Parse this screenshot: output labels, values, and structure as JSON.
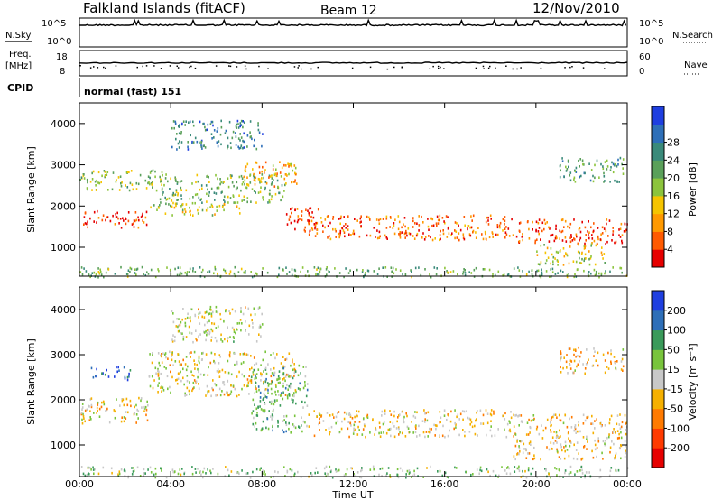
{
  "header": {
    "station": "Falkland Islands (fitACF)",
    "beam": "Beam 12",
    "date": "12/Nov/2010"
  },
  "noise_panel": {
    "left_label": "N.Sky",
    "right_label": "N.Search",
    "left_ticks": [
      "10^5",
      "10^0"
    ],
    "right_ticks": [
      "10^5",
      "10^0"
    ]
  },
  "freq_panel": {
    "left_label_1": "Freq.",
    "left_label_2": "[MHz]",
    "right_label": "Nave",
    "left_ticks": [
      "18",
      "8"
    ],
    "right_ticks": [
      "60",
      "0"
    ]
  },
  "cpid": {
    "label": "CPID",
    "value": "normal (fast) 151"
  },
  "colors": {
    "power": [
      "#1f3fe0",
      "#2e6fb8",
      "#3a8a7a",
      "#5aa05a",
      "#8cc43c",
      "#f5c400",
      "#ff9900",
      "#ff5a00",
      "#e60000"
    ],
    "velocity": [
      "#1f3fe0",
      "#2e6fb8",
      "#3a9a5a",
      "#78c43c",
      "#c8c8c8",
      "#f5b000",
      "#ff7a00",
      "#ff3a00",
      "#e60000"
    ]
  },
  "chart_data": [
    {
      "type": "heatmap",
      "name": "power",
      "ylabel": "Slant Range [km]",
      "xlabel": "",
      "x_ticks": [
        "00:00",
        "04:00",
        "08:00",
        "12:00",
        "16:00",
        "20:00",
        "00:00"
      ],
      "y_ticks": [
        "1000",
        "2000",
        "3000",
        "4000"
      ],
      "ylim": [
        300,
        4500
      ],
      "xlim_hours": [
        0,
        24
      ],
      "colorbar_label": "Power [dB]",
      "colorbar_ticks": [
        "4",
        "8",
        "12",
        "16",
        "20",
        "24",
        "28"
      ],
      "scatter_bands": [
        {
          "t0": 0.0,
          "t1": 3.0,
          "r0": 1500,
          "r1": 1900,
          "level": 0.92
        },
        {
          "t0": 0.0,
          "t1": 3.8,
          "r0": 2400,
          "r1": 2900,
          "level": 0.5
        },
        {
          "t0": 3.0,
          "t1": 7.0,
          "r0": 1800,
          "r1": 2100,
          "level": 0.55
        },
        {
          "t0": 3.5,
          "t1": 9.0,
          "r0": 2100,
          "r1": 2800,
          "level": 0.45
        },
        {
          "t0": 4.0,
          "t1": 8.0,
          "r0": 3400,
          "r1": 4100,
          "level": 0.25
        },
        {
          "t0": 7.0,
          "t1": 9.5,
          "r0": 2500,
          "r1": 3100,
          "level": 0.7
        },
        {
          "t0": 9.0,
          "t1": 10.5,
          "r0": 1400,
          "r1": 2000,
          "level": 0.92
        },
        {
          "t0": 10.0,
          "t1": 19.0,
          "r0": 1200,
          "r1": 1800,
          "level": 0.8
        },
        {
          "t0": 19.0,
          "t1": 24.0,
          "r0": 1100,
          "r1": 1700,
          "level": 0.88
        },
        {
          "t0": 20.0,
          "t1": 23.0,
          "r0": 600,
          "r1": 1100,
          "level": 0.55
        },
        {
          "t0": 21.0,
          "t1": 23.8,
          "r0": 2600,
          "r1": 3200,
          "level": 0.35
        },
        {
          "t0": 0.0,
          "t1": 24.0,
          "r0": 300,
          "r1": 550,
          "level": 0.4
        }
      ]
    },
    {
      "type": "heatmap",
      "name": "velocity",
      "ylabel": "Slant Range [km]",
      "xlabel": "Time UT",
      "x_ticks": [
        "00:00",
        "04:00",
        "08:00",
        "12:00",
        "16:00",
        "20:00",
        "00:00"
      ],
      "y_ticks": [
        "1000",
        "2000",
        "3000",
        "4000"
      ],
      "ylim": [
        300,
        4500
      ],
      "xlim_hours": [
        0,
        24
      ],
      "colorbar_label": "Velocity [m s⁻¹]",
      "colorbar_ticks": [
        "200",
        "100",
        "50",
        "15",
        "-15",
        "-50",
        "-100",
        "-200"
      ],
      "scatter_bands": [
        {
          "t0": 0.0,
          "t1": 3.0,
          "r0": 1500,
          "r1": 2100,
          "level": 0.55
        },
        {
          "t0": 0.5,
          "t1": 2.2,
          "r0": 2450,
          "r1": 2750,
          "level": 0.1
        },
        {
          "t0": 3.0,
          "t1": 9.5,
          "r0": 2100,
          "r1": 3100,
          "level": 0.52
        },
        {
          "t0": 7.5,
          "t1": 10.0,
          "r0": 1300,
          "r1": 2800,
          "level": 0.35
        },
        {
          "t0": 4.0,
          "t1": 8.0,
          "r0": 3300,
          "r1": 4100,
          "level": 0.5
        },
        {
          "t0": 10.0,
          "t1": 19.0,
          "r0": 1200,
          "r1": 1800,
          "level": 0.55
        },
        {
          "t0": 19.0,
          "t1": 24.0,
          "r0": 700,
          "r1": 1700,
          "level": 0.58
        },
        {
          "t0": 21.0,
          "t1": 23.8,
          "r0": 2600,
          "r1": 3200,
          "level": 0.6
        },
        {
          "t0": 0.0,
          "t1": 24.0,
          "r0": 300,
          "r1": 550,
          "level": 0.4
        }
      ]
    }
  ]
}
